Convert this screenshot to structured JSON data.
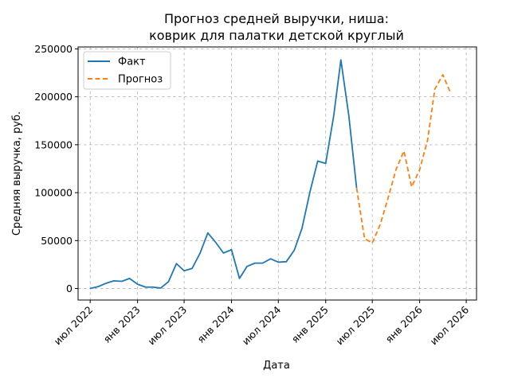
{
  "chart_data": {
    "type": "line",
    "title_line1": "Прогноз средней выручки, ниша:",
    "title_line2": "коврик для палатки детской круглый",
    "xlabel": "Дата",
    "ylabel": "Средняя выручка, руб.",
    "ylim": [
      -12000,
      252000
    ],
    "xlim": [
      "2022-05-15",
      "2026-08-10"
    ],
    "yticks": [
      0,
      50000,
      100000,
      150000,
      200000,
      250000
    ],
    "xticks": [
      {
        "date": "2022-07-01",
        "label": "июл 2022"
      },
      {
        "date": "2023-01-01",
        "label": "янв 2023"
      },
      {
        "date": "2023-07-01",
        "label": "июл 2023"
      },
      {
        "date": "2024-01-01",
        "label": "янв 2024"
      },
      {
        "date": "2024-07-01",
        "label": "июл 2024"
      },
      {
        "date": "2025-01-01",
        "label": "янв 2025"
      },
      {
        "date": "2025-07-01",
        "label": "июл 2025"
      },
      {
        "date": "2026-01-01",
        "label": "янв 2026"
      },
      {
        "date": "2026-07-01",
        "label": "июл 2026"
      }
    ],
    "grid": true,
    "legend_position": "top-left",
    "series": [
      {
        "name": "Факт",
        "color": "#1f77b4",
        "style": "solid",
        "points": [
          [
            "2022-07-01",
            0
          ],
          [
            "2022-08-01",
            2000
          ],
          [
            "2022-09-01",
            5500
          ],
          [
            "2022-10-01",
            8000
          ],
          [
            "2022-11-01",
            7500
          ],
          [
            "2022-12-01",
            10500
          ],
          [
            "2023-01-01",
            4500
          ],
          [
            "2023-02-01",
            1500
          ],
          [
            "2023-03-01",
            1500
          ],
          [
            "2023-04-01",
            500
          ],
          [
            "2023-05-01",
            7000
          ],
          [
            "2023-06-01",
            26000
          ],
          [
            "2023-07-01",
            18500
          ],
          [
            "2023-08-01",
            21000
          ],
          [
            "2023-09-01",
            37000
          ],
          [
            "2023-10-01",
            58000
          ],
          [
            "2023-11-01",
            48000
          ],
          [
            "2023-12-01",
            37000
          ],
          [
            "2024-01-01",
            40500
          ],
          [
            "2024-02-01",
            10500
          ],
          [
            "2024-03-01",
            23000
          ],
          [
            "2024-04-01",
            26500
          ],
          [
            "2024-05-01",
            26500
          ],
          [
            "2024-06-01",
            31000
          ],
          [
            "2024-07-01",
            27500
          ],
          [
            "2024-08-01",
            28000
          ],
          [
            "2024-09-01",
            40000
          ],
          [
            "2024-10-01",
            63000
          ],
          [
            "2024-11-01",
            101000
          ],
          [
            "2024-12-01",
            133000
          ],
          [
            "2025-01-01",
            130500
          ],
          [
            "2025-02-01",
            180000
          ],
          [
            "2025-03-01",
            238500
          ],
          [
            "2025-04-01",
            180000
          ],
          [
            "2025-05-01",
            105000
          ]
        ]
      },
      {
        "name": "Прогноз",
        "color": "#ff7f0e",
        "style": "dashed",
        "points": [
          [
            "2025-05-01",
            105000
          ],
          [
            "2025-06-01",
            52000
          ],
          [
            "2025-07-01",
            47500
          ],
          [
            "2025-08-01",
            67000
          ],
          [
            "2025-09-01",
            95000
          ],
          [
            "2025-10-01",
            124000
          ],
          [
            "2025-11-01",
            143500
          ],
          [
            "2025-12-01",
            106000
          ],
          [
            "2026-01-01",
            124000
          ],
          [
            "2026-02-01",
            155000
          ],
          [
            "2026-03-01",
            208000
          ],
          [
            "2026-04-01",
            223000
          ],
          [
            "2026-05-01",
            204000
          ]
        ]
      }
    ]
  }
}
